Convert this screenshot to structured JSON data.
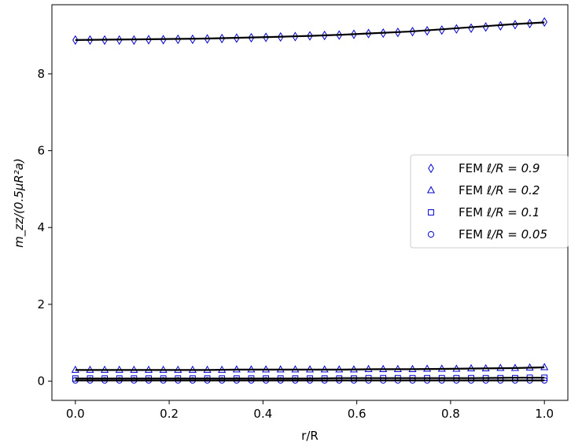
{
  "chart_data": {
    "type": "scatter",
    "xlabel": "r/R",
    "ylabel": "m_zz/(0.5μR²a)",
    "xlim": [
      -0.05,
      1.05
    ],
    "ylim": [
      -0.5,
      9.8
    ],
    "xticks": [
      0.0,
      0.2,
      0.4,
      0.6,
      0.8,
      1.0
    ],
    "xtick_labels": [
      "0.0",
      "0.2",
      "0.4",
      "0.6",
      "0.8",
      "1.0"
    ],
    "yticks": [
      0,
      2,
      4,
      6,
      8
    ],
    "ytick_labels": [
      "0",
      "2",
      "4",
      "6",
      "8"
    ],
    "grid": false,
    "legend_position": "center-right",
    "marker_color": "#0000cc",
    "line_color": "#000000",
    "x": [
      0.0,
      0.0313,
      0.0625,
      0.0938,
      0.125,
      0.1563,
      0.1875,
      0.2188,
      0.25,
      0.2813,
      0.3125,
      0.3438,
      0.375,
      0.4063,
      0.4375,
      0.4688,
      0.5,
      0.5313,
      0.5625,
      0.5938,
      0.625,
      0.6563,
      0.6875,
      0.7188,
      0.75,
      0.7813,
      0.8125,
      0.8438,
      0.875,
      0.9063,
      0.9375,
      0.9688,
      1.0
    ],
    "series": [
      {
        "name": "FEM ℓ/R = 0.9",
        "legend_label": "FEM",
        "legend_math": "ℓ/R = 0.9",
        "marker": "diamond",
        "values": [
          8.88,
          8.88,
          8.88,
          8.88,
          8.88,
          8.89,
          8.89,
          8.9,
          8.9,
          8.91,
          8.92,
          8.93,
          8.94,
          8.95,
          8.96,
          8.97,
          8.99,
          9.0,
          9.01,
          9.03,
          9.05,
          9.06,
          9.08,
          9.1,
          9.12,
          9.14,
          9.17,
          9.19,
          9.22,
          9.25,
          9.28,
          9.31,
          9.35
        ],
        "fit": [
          8.88,
          8.89,
          8.9,
          8.91,
          8.92,
          8.94,
          8.96,
          8.99,
          9.02,
          9.06,
          9.1,
          9.16,
          9.22,
          9.29,
          9.34
        ]
      },
      {
        "name": "FEM ℓ/R = 0.2",
        "legend_label": "FEM",
        "legend_math": "ℓ/R = 0.2",
        "marker": "triangle",
        "values": [
          0.29,
          0.29,
          0.29,
          0.29,
          0.29,
          0.29,
          0.29,
          0.29,
          0.29,
          0.29,
          0.29,
          0.3,
          0.3,
          0.3,
          0.3,
          0.3,
          0.3,
          0.3,
          0.3,
          0.3,
          0.31,
          0.31,
          0.31,
          0.31,
          0.32,
          0.32,
          0.32,
          0.33,
          0.33,
          0.34,
          0.34,
          0.35,
          0.36
        ],
        "fit": [
          0.29,
          0.29,
          0.29,
          0.29,
          0.29,
          0.3,
          0.3,
          0.3,
          0.3,
          0.31,
          0.31,
          0.32,
          0.33,
          0.34,
          0.36
        ]
      },
      {
        "name": "FEM ℓ/R = 0.1",
        "legend_label": "FEM",
        "legend_math": "ℓ/R = 0.1",
        "marker": "square",
        "values": [
          0.07,
          0.07,
          0.07,
          0.07,
          0.07,
          0.07,
          0.07,
          0.07,
          0.07,
          0.07,
          0.07,
          0.07,
          0.07,
          0.07,
          0.07,
          0.07,
          0.07,
          0.07,
          0.07,
          0.07,
          0.08,
          0.08,
          0.08,
          0.08,
          0.08,
          0.08,
          0.08,
          0.08,
          0.08,
          0.08,
          0.08,
          0.09,
          0.09
        ],
        "fit": [
          0.07,
          0.07,
          0.07,
          0.07,
          0.07,
          0.07,
          0.07,
          0.07,
          0.08,
          0.08,
          0.08,
          0.08,
          0.08,
          0.09,
          0.09
        ]
      },
      {
        "name": "FEM ℓ/R = 0.05",
        "legend_label": "FEM",
        "legend_math": "ℓ/R = 0.05",
        "marker": "circle",
        "values": [
          0.02,
          0.02,
          0.02,
          0.02,
          0.02,
          0.02,
          0.02,
          0.02,
          0.02,
          0.02,
          0.02,
          0.02,
          0.02,
          0.02,
          0.02,
          0.02,
          0.02,
          0.02,
          0.02,
          0.02,
          0.02,
          0.02,
          0.02,
          0.02,
          0.02,
          0.02,
          0.02,
          0.02,
          0.02,
          0.02,
          0.02,
          0.02,
          0.02
        ],
        "fit": [
          0.02,
          0.02,
          0.02,
          0.02,
          0.02,
          0.02,
          0.02,
          0.02,
          0.02,
          0.02,
          0.02,
          0.02,
          0.02,
          0.02,
          0.02
        ]
      }
    ],
    "fit_x": [
      0.0,
      0.07,
      0.14,
      0.21,
      0.28,
      0.35,
      0.42,
      0.5,
      0.57,
      0.64,
      0.71,
      0.78,
      0.85,
      0.93,
      1.0
    ]
  }
}
